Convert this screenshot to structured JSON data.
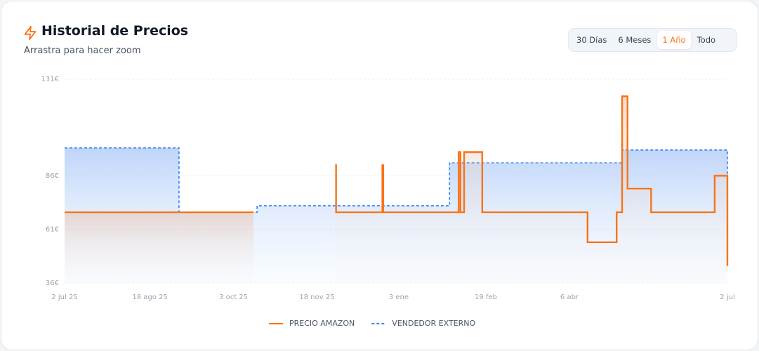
{
  "header": {
    "title": "Historial de Precios",
    "subtitle": "Arrastra para hacer zoom"
  },
  "range_buttons": [
    "30 Días",
    "6 Meses",
    "1 Año",
    "Todo"
  ],
  "active_range": 2,
  "chart_data": {
    "type": "step",
    "xlim": [
      0,
      365
    ],
    "xticks": [
      {
        "value": 0,
        "label": "2 jul 25"
      },
      {
        "value": 47,
        "label": "18 ago 25"
      },
      {
        "value": 93,
        "label": "3 oct 25"
      },
      {
        "value": 139,
        "label": "18 nov 25"
      },
      {
        "value": 184,
        "label": "3 ene"
      },
      {
        "value": 232,
        "label": "19 feb"
      },
      {
        "value": 278,
        "label": "6 abr"
      },
      {
        "value": 365,
        "label": "2 jul"
      }
    ],
    "ylim": [
      36,
      131
    ],
    "yticks": [
      {
        "value": 36,
        "label": "36€"
      },
      {
        "value": 61,
        "label": "61€"
      },
      {
        "value": 86,
        "label": "86€"
      },
      {
        "value": 131,
        "label": "131€"
      }
    ],
    "grid": true,
    "series": [
      {
        "name": "VENDEDOR EXTERNO",
        "color": "#3b82f6",
        "dashed": true,
        "x": [
          0,
          63,
          106,
          212,
          307,
          365
        ],
        "values": [
          99,
          69,
          72,
          92,
          98,
          86
        ]
      },
      {
        "name": "PRECIO AMAZON",
        "color": "#f97316",
        "dashed": false,
        "x": [
          0,
          104,
          149,
          149.5,
          175,
          175.5,
          217,
          218,
          220,
          230,
          288,
          304,
          307,
          310,
          323,
          358,
          365
        ],
        "values": [
          69,
          null,
          91,
          69,
          91,
          69,
          97,
          69,
          97,
          69,
          55,
          69,
          123,
          80,
          69,
          86,
          44
        ]
      }
    ]
  }
}
